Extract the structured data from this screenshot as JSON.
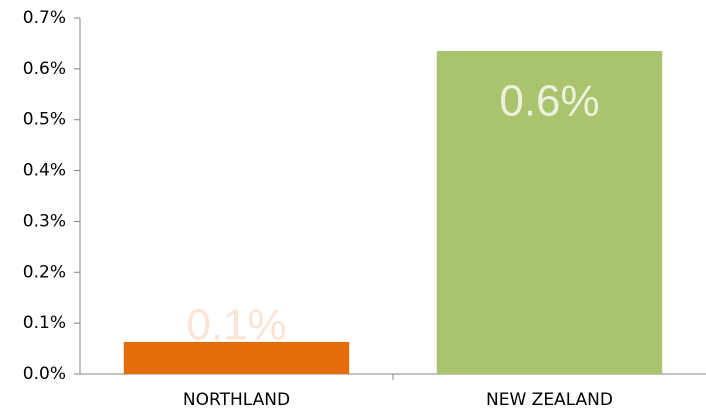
{
  "chart_data": {
    "type": "bar",
    "categories": [
      "NORTHLAND",
      "NEW ZEALAND"
    ],
    "values": [
      0.063,
      0.635
    ],
    "value_labels": [
      "0.1%",
      "0.6%"
    ],
    "colors": [
      "#e46c0a",
      "#a9c46c"
    ],
    "label_colors": [
      "#fbe5d6",
      "#ebf1de"
    ],
    "ylim": [
      0,
      0.7
    ],
    "yticks": [
      {
        "value": 0,
        "label": "0.0%"
      },
      {
        "value": 0.1,
        "label": "0.1%"
      },
      {
        "value": 0.2,
        "label": "0.2%"
      },
      {
        "value": 0.3,
        "label": "0.3%"
      },
      {
        "value": 0.4,
        "label": "0.4%"
      },
      {
        "value": 0.5,
        "label": "0.5%"
      },
      {
        "value": 0.6,
        "label": "0.6%"
      },
      {
        "value": 0.7,
        "label": "0.7%"
      }
    ],
    "grid": false
  }
}
